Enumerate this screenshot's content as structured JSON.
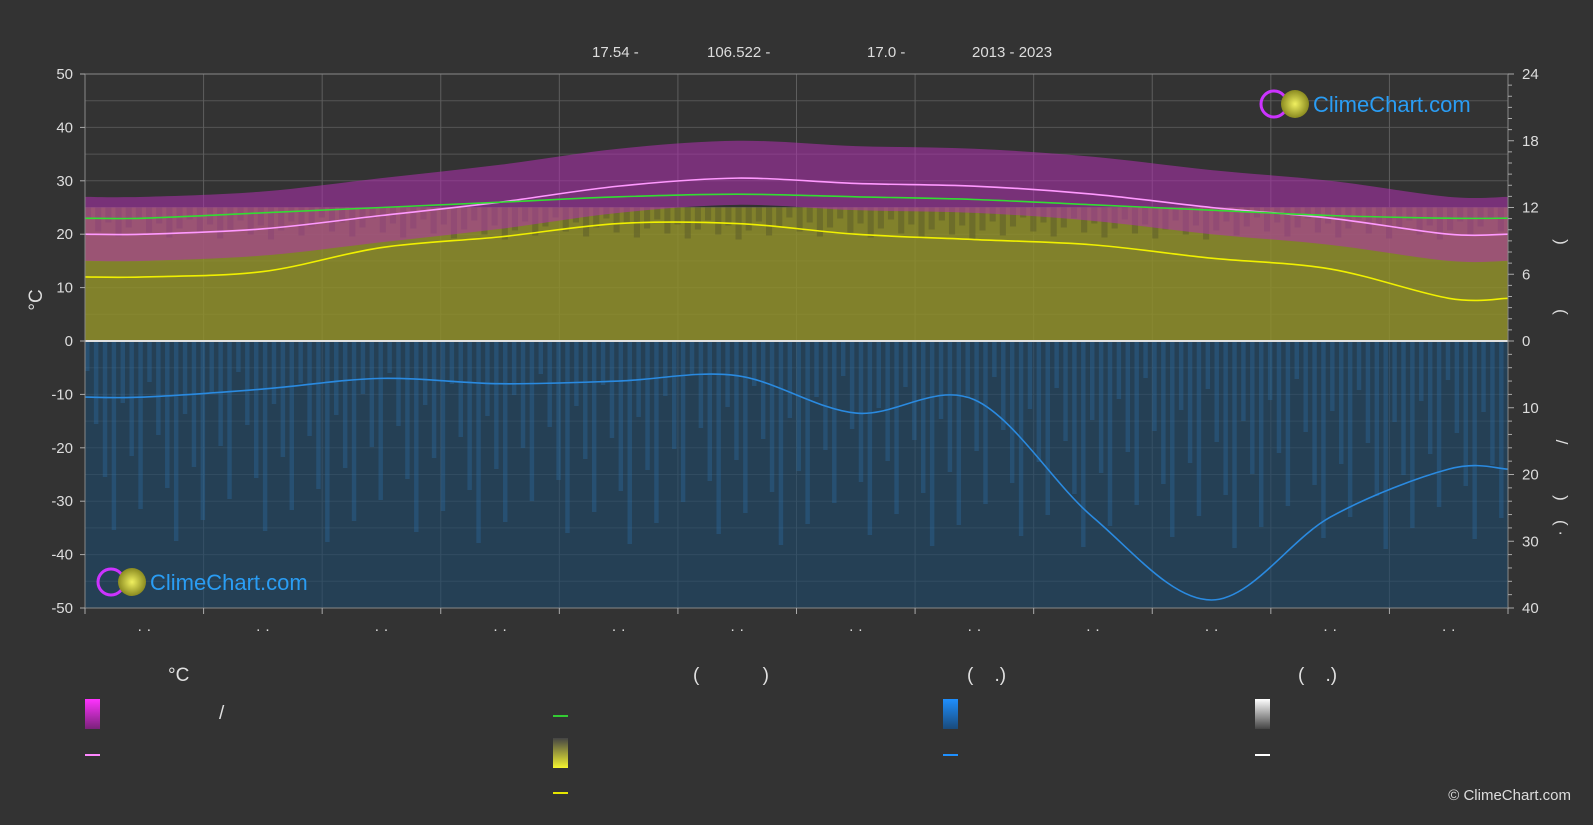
{
  "header": {
    "lat": "17.54 -",
    "lon": "106.522 -",
    "elev": "17.0 -",
    "years": "2013 - 2023"
  },
  "brand": {
    "logo_text_top": "ClimeChart.com",
    "logo_text_bottom": "ClimeChart.com",
    "copyright": "© ClimeChart.com",
    "colors": {
      "pink": "#ff33ff",
      "magenta": "#cc33cc",
      "yellow": "#e5e500",
      "blue": "#1e90ff",
      "green": "#33cc33"
    }
  },
  "chart_data": {
    "type": "area",
    "title": "",
    "ylabel_left": "°C",
    "ylabel_right_top": ")",
    "ylabel_right_top2": "(",
    "ylabel_right_bottom": "/",
    "ylabel_right_bottom2": ")",
    "ylabel_right_bottom3": "( ·",
    "left_axis": {
      "ylim": [
        -50,
        50
      ],
      "ticks": [
        50,
        40,
        30,
        20,
        10,
        0,
        -10,
        -20,
        -30,
        -40,
        -50
      ]
    },
    "right_axis_top": {
      "ylim": [
        0,
        24
      ],
      "ticks": [
        24,
        18,
        12,
        6,
        0
      ]
    },
    "right_axis_bottom": {
      "ylim": [
        0,
        40
      ],
      "ticks": [
        10,
        20,
        30,
        40
      ]
    },
    "months": 12,
    "month_labels": [
      "· ·",
      "· ·",
      "· ·",
      "· ·",
      "· ·",
      "· ·",
      "· ·",
      "· ·",
      "· ·",
      "· ·",
      "· ·",
      "· ·"
    ],
    "series": [
      {
        "values": [
          20.0,
          21.0,
          23.5,
          26.0,
          29.0,
          30.5,
          29.5,
          29.0,
          27.5,
          25.0,
          23.0,
          20.0
        ],
        "color": "#ff99ff"
      },
      {
        "values": [
          23.0,
          24.0,
          25.0,
          26.0,
          27.0,
          27.5,
          27.0,
          26.5,
          25.5,
          24.5,
          23.5,
          23.0
        ],
        "color": "#33dd33"
      },
      {
        "values": [
          12.0,
          13.0,
          17.5,
          19.5,
          22.0,
          22.0,
          20.0,
          19.0,
          18.0,
          15.5,
          13.5,
          8.0
        ],
        "color": "#f0f000"
      },
      {
        "values": [
          -10.5,
          -9.0,
          -7.0,
          -8.0,
          -7.5,
          -6.5,
          -13.5,
          -11.0,
          -33.0,
          -48.5,
          -33.0,
          -24.0
        ],
        "color": "#2a8ae0"
      }
    ],
    "sunshine_fill_top": 25,
    "grid": true,
    "legend_position": "bottom"
  },
  "legend": {
    "col1_header": "°C",
    "col1_row1_text": "/",
    "col2_header": "(            )",
    "col3_header": "(    .)",
    "col4_header": "(    .)"
  }
}
